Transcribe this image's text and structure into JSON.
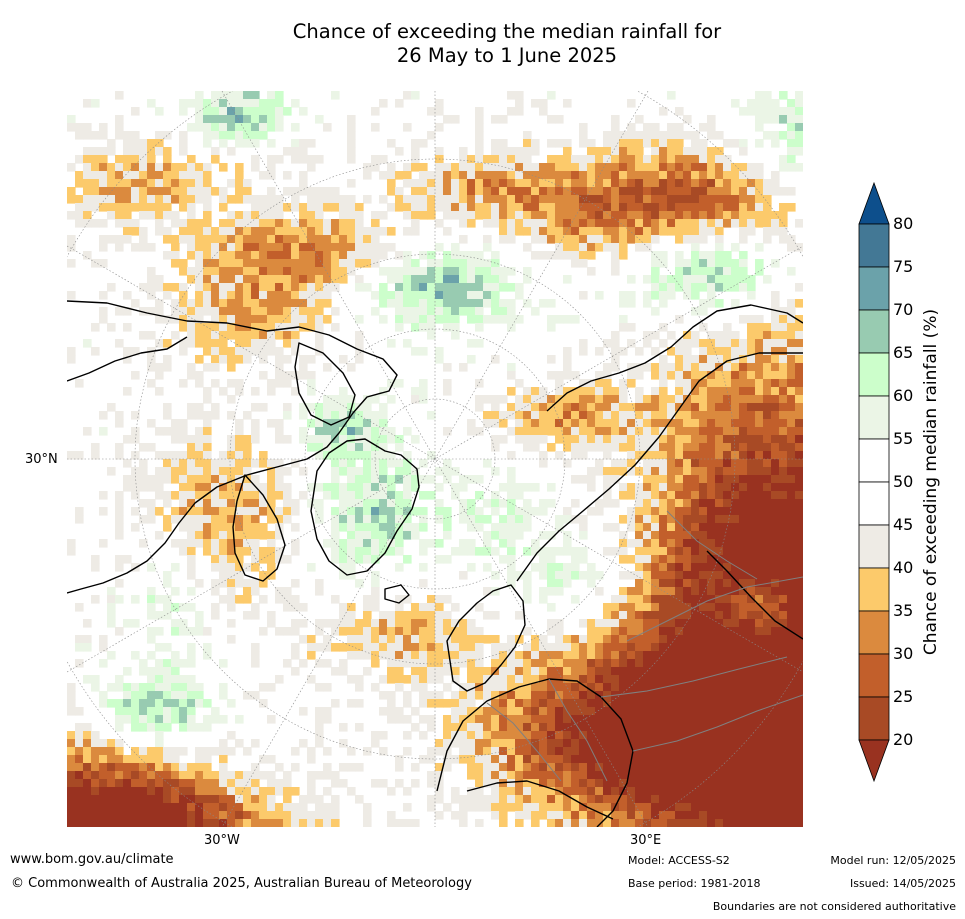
{
  "title": {
    "line1": "Chance of exceeding the median rainfall for",
    "line2": "26 May to 1 June 2025"
  },
  "map": {
    "projection": "north-polar-stereographic",
    "labels": {
      "lat_30n": "30°N",
      "lon_30w": "30°W",
      "lon_30e": "30°E"
    }
  },
  "legend": {
    "title": "Chance of exceeding median rainfall (%)",
    "ticks": [
      "20",
      "25",
      "30",
      "35",
      "40",
      "45",
      "50",
      "55",
      "60",
      "65",
      "70",
      "75",
      "80"
    ],
    "colors": {
      "below_20": "#993220",
      "20_25": "#a84a25",
      "25_30": "#c25f2b",
      "30_35": "#db8a3e",
      "35_40": "#fcca6b",
      "40_45": "#eeebe5",
      "45_50": "#ffffff",
      "50_55": "#ffffff",
      "55_60": "#ebf5e6",
      "60_65": "#ccfecb",
      "65_70": "#98cbb1",
      "70_75": "#6ba2aa",
      "75_80": "#437895",
      "above_80": "#0d4f8c"
    }
  },
  "footer": {
    "website": "www.bom.gov.au/climate",
    "copyright": "© Commonwealth of Australia 2025, Australian Bureau of Meteorology",
    "model": "Model: ACCESS-S2",
    "base_period": "Base period: 1981-2018",
    "model_run": "Model run: 12/05/2025",
    "issued": "Issued: 14/05/2025",
    "disclaimer": "Boundaries are not considered authoritative"
  }
}
